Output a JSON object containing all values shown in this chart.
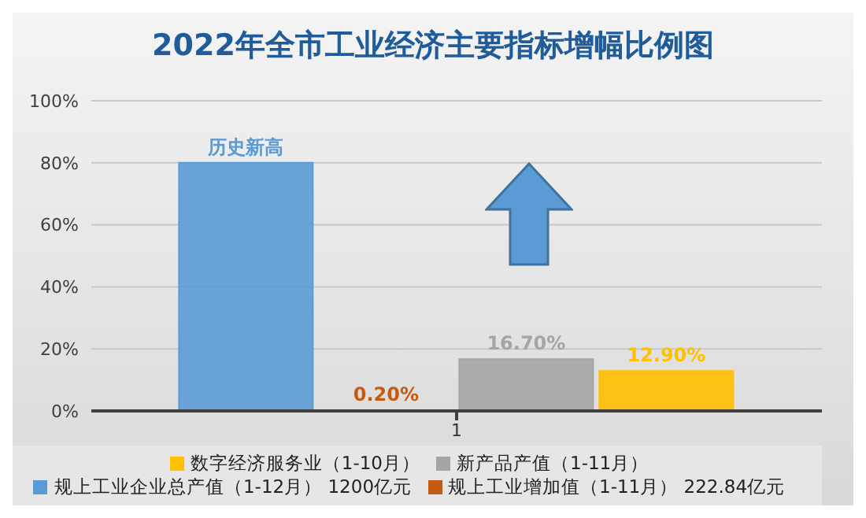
{
  "chart_data": {
    "type": "bar",
    "title": "2022年全市工业经济主要指标增幅比例图",
    "categories": [
      "1"
    ],
    "series": [
      {
        "name": "规上工业企业总产值（1-12月） 1200亿元",
        "color": "#5b9bd5",
        "values": [
          80
        ],
        "value_labels": [
          "历史新高"
        ]
      },
      {
        "name": "规上工业增加值（1-11月） 222.84亿元",
        "color": "#c55a11",
        "values": [
          0.2
        ],
        "value_labels": [
          "0.20%"
        ]
      },
      {
        "name": "新产品产值（1-11月）",
        "color": "#a5a5a5",
        "values": [
          16.7
        ],
        "value_labels": [
          "16.70%"
        ]
      },
      {
        "name": "数字经济服务业（1-10月）",
        "color": "#ffc000",
        "values": [
          12.9
        ],
        "value_labels": [
          "12.90%"
        ]
      }
    ],
    "ylim": [
      0,
      100
    ],
    "yticks": [
      {
        "value": 0,
        "label": "0%"
      },
      {
        "value": 20,
        "label": "20%"
      },
      {
        "value": 40,
        "label": "40%"
      },
      {
        "value": 60,
        "label": "60%"
      },
      {
        "value": 80,
        "label": "80%"
      },
      {
        "value": 100,
        "label": "100%"
      }
    ],
    "grid": "y",
    "legend": "bottom"
  }
}
